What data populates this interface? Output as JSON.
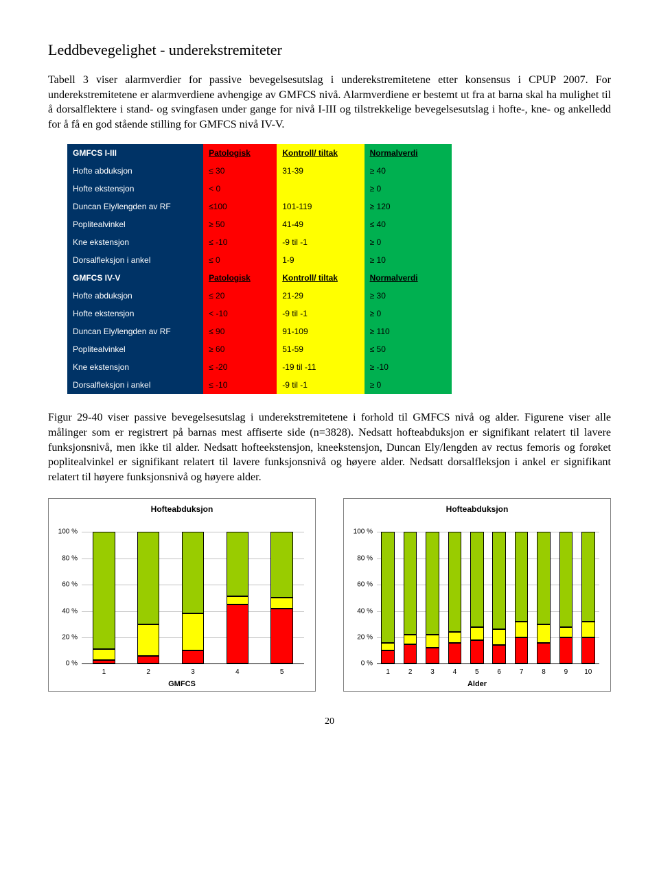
{
  "section_title": "Leddbevegelighet - underekstremiteter",
  "intro_para": "Tabell 3 viser alarmverdier for passive bevegelsesutslag i underekstremitetene etter konsensus i CPUP 2007. For underekstremitetene er alarmverdiene avhengige av GMFCS nivå. Alarmverdiene er bestemt ut fra at barna skal ha mulighet til å dorsalflektere i stand- og svingfasen under gange for nivå I-III og tilstrekkelige bevegelsesutslag i hofte-, kne- og ankelledd for å få en god stående stilling for GMFCS nivå IV-V.",
  "table": {
    "header_cols": [
      "Patologisk",
      "Kontroll/ tiltak",
      "Normalverdi"
    ],
    "group1_label": "GMFCS I-III",
    "group1_rows": [
      {
        "label": "Hofte abduksjon",
        "r": "≤ 30",
        "y": "31-39",
        "g": "≥ 40"
      },
      {
        "label": "Hofte ekstensjon",
        "r": "< 0",
        "y": "",
        "g": "≥ 0"
      },
      {
        "label": "Duncan Ely/lengden av RF",
        "r": "≤100",
        "y": "101-119",
        "g": "≥ 120"
      },
      {
        "label": "Poplitealvinkel",
        "r": "≥ 50",
        "y": "41-49",
        "g": "≤ 40"
      },
      {
        "label": "Kne ekstensjon",
        "r": "≤ -10",
        "y": "-9 til -1",
        "g": "≥ 0"
      },
      {
        "label": "Dorsalfleksjon i ankel",
        "r": "≤ 0",
        "y": "1-9",
        "g": "≥ 10"
      }
    ],
    "group2_label": "GMFCS IV-V",
    "group2_rows": [
      {
        "label": "Hofte abduksjon",
        "r": "≤ 20",
        "y": "21-29",
        "g": "≥ 30"
      },
      {
        "label": "Hofte ekstensjon",
        "r": "< -10",
        "y": "-9 til -1",
        "g": "≥ 0"
      },
      {
        "label": "Duncan Ely/lengden av RF",
        "r": "≤ 90",
        "y": "91-109",
        "g": "≥ 110"
      },
      {
        "label": "Poplitealvinkel",
        "r": "≥ 60",
        "y": "51-59",
        "g": "≤ 50"
      },
      {
        "label": "Kne ekstensjon",
        "r": "≤ -20",
        "y": "-19 til -11",
        "g": "≥ -10"
      },
      {
        "label": "Dorsalfleksjon i ankel",
        "r": "≤ -10",
        "y": "-9 til -1",
        "g": "≥ 0"
      }
    ]
  },
  "para2": "Figur 29-40 viser passive bevegelsesutslag i underekstremitetene i forhold til GMFCS nivå og alder. Figurene viser alle målinger som er registrert på barnas mest affiserte side (n=3828). Nedsatt hofteabduksjon er signifikant relatert til lavere funksjonsnivå, men ikke til alder. Nedsatt hofteekstensjon, kneekstensjon, Duncan Ely/lengden av rectus femoris og forøket poplitealvinkel er signifikant relatert til lavere funksjonsnivå og høyere alder. Nedsatt dorsalfleksjon i ankel er signifikant relatert til høyere funksjonsnivå og høyere alder.",
  "chart_left": {
    "title": "Hofteabduksjon",
    "x_title": "GMFCS",
    "y_ticks": [
      0,
      20,
      40,
      60,
      80,
      100
    ],
    "y_suffix": " %",
    "categories": [
      "1",
      "2",
      "3",
      "4",
      "5"
    ],
    "bar_width_pct": 10,
    "series": [
      {
        "red": 3,
        "yellow": 8,
        "green": 89
      },
      {
        "red": 6,
        "yellow": 24,
        "green": 70
      },
      {
        "red": 10,
        "yellow": 28,
        "green": 62
      },
      {
        "red": 45,
        "yellow": 6,
        "green": 49
      },
      {
        "red": 42,
        "yellow": 8,
        "green": 50
      }
    ],
    "colors": {
      "red": "#ff0000",
      "yellow": "#ffff00",
      "green": "#99cc00"
    }
  },
  "chart_right": {
    "title": "Hofteabduksjon",
    "x_title": "Alder",
    "y_ticks": [
      0,
      20,
      40,
      60,
      80,
      100
    ],
    "y_suffix": " %",
    "categories": [
      "1",
      "2",
      "3",
      "4",
      "5",
      "6",
      "7",
      "8",
      "9",
      "10"
    ],
    "bar_width_pct": 6,
    "series": [
      {
        "red": 10,
        "yellow": 6,
        "green": 84
      },
      {
        "red": 15,
        "yellow": 7,
        "green": 78
      },
      {
        "red": 12,
        "yellow": 10,
        "green": 78
      },
      {
        "red": 16,
        "yellow": 8,
        "green": 76
      },
      {
        "red": 18,
        "yellow": 10,
        "green": 72
      },
      {
        "red": 14,
        "yellow": 12,
        "green": 74
      },
      {
        "red": 20,
        "yellow": 12,
        "green": 68
      },
      {
        "red": 16,
        "yellow": 14,
        "green": 70
      },
      {
        "red": 20,
        "yellow": 8,
        "green": 72
      },
      {
        "red": 20,
        "yellow": 12,
        "green": 68
      }
    ],
    "colors": {
      "red": "#ff0000",
      "yellow": "#ffff00",
      "green": "#99cc00"
    }
  },
  "page_number": "20"
}
